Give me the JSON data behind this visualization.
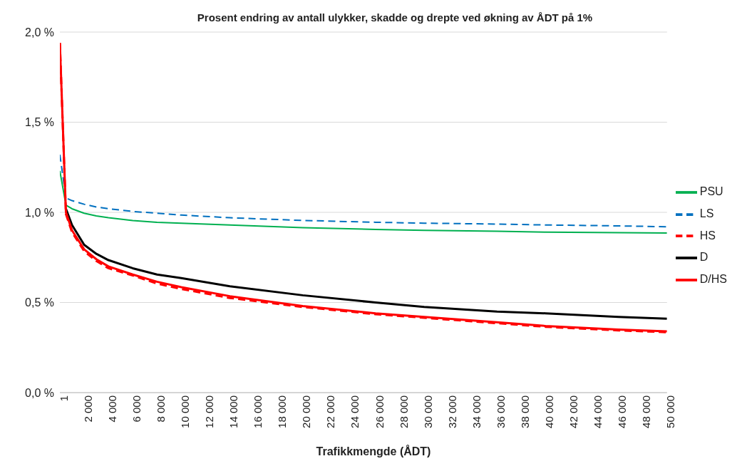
{
  "chart_data": {
    "type": "line",
    "title": "Prosent endring av antall ulykker, skadde og drepte ved økning av ÅDT på 1%",
    "xlabel": "Trafikkmengde (ÅDT)",
    "x": [
      1,
      500,
      1000,
      2000,
      3000,
      4000,
      6000,
      8000,
      10000,
      14000,
      20000,
      26000,
      30000,
      36000,
      40000,
      46000,
      50000
    ],
    "series": [
      {
        "name": "PSU",
        "color": "#00b050",
        "line_style": "solid",
        "values": [
          1.23,
          1.04,
          1.02,
          0.995,
          0.98,
          0.97,
          0.955,
          0.945,
          0.94,
          0.93,
          0.915,
          0.905,
          0.9,
          0.895,
          0.89,
          0.887,
          0.885
        ]
      },
      {
        "name": "LS",
        "color": "#0070c0",
        "line_style": "dashed",
        "values": [
          1.32,
          1.08,
          1.065,
          1.045,
          1.03,
          1.02,
          1.005,
          0.995,
          0.985,
          0.97,
          0.955,
          0.945,
          0.94,
          0.935,
          0.93,
          0.925,
          0.92
        ]
      },
      {
        "name": "HS",
        "color": "#ff0000",
        "line_style": "dashed",
        "values": [
          1.94,
          0.99,
          0.89,
          0.785,
          0.73,
          0.69,
          0.65,
          0.605,
          0.575,
          0.525,
          0.475,
          0.435,
          0.415,
          0.385,
          0.365,
          0.345,
          0.335
        ]
      },
      {
        "name": "D",
        "color": "#000000",
        "line_style": "solid",
        "values": [
          null,
          1.02,
          0.93,
          0.82,
          0.77,
          0.735,
          0.69,
          0.655,
          0.635,
          0.59,
          0.54,
          0.5,
          0.475,
          0.45,
          0.44,
          0.42,
          0.41
        ]
      },
      {
        "name": "D/HS",
        "color": "#ff0000",
        "line_style": "solid",
        "values": [
          1.94,
          1.0,
          0.9,
          0.795,
          0.74,
          0.7,
          0.655,
          0.615,
          0.585,
          0.535,
          0.48,
          0.44,
          0.42,
          0.39,
          0.37,
          0.35,
          0.34
        ]
      }
    ],
    "xlim": [
      1,
      50000
    ],
    "xticks": [
      {
        "value": 1,
        "label": "1"
      },
      {
        "value": 2000,
        "label": "2 000"
      },
      {
        "value": 4000,
        "label": "4 000"
      },
      {
        "value": 6000,
        "label": "6 000"
      },
      {
        "value": 8000,
        "label": "8 000"
      },
      {
        "value": 10000,
        "label": "10 000"
      },
      {
        "value": 12000,
        "label": "12 000"
      },
      {
        "value": 14000,
        "label": "14 000"
      },
      {
        "value": 16000,
        "label": "16 000"
      },
      {
        "value": 18000,
        "label": "18 000"
      },
      {
        "value": 20000,
        "label": "20 000"
      },
      {
        "value": 22000,
        "label": "22 000"
      },
      {
        "value": 24000,
        "label": "24 000"
      },
      {
        "value": 26000,
        "label": "26 000"
      },
      {
        "value": 28000,
        "label": "28 000"
      },
      {
        "value": 30000,
        "label": "30 000"
      },
      {
        "value": 32000,
        "label": "32 000"
      },
      {
        "value": 34000,
        "label": "34 000"
      },
      {
        "value": 36000,
        "label": "36 000"
      },
      {
        "value": 38000,
        "label": "38 000"
      },
      {
        "value": 40000,
        "label": "40 000"
      },
      {
        "value": 42000,
        "label": "42 000"
      },
      {
        "value": 44000,
        "label": "44 000"
      },
      {
        "value": 46000,
        "label": "46 000"
      },
      {
        "value": 48000,
        "label": "48 000"
      },
      {
        "value": 50000,
        "label": "50 000"
      }
    ],
    "ylim": [
      0,
      2
    ],
    "yticks": [
      {
        "value": 0,
        "label": "0,0 %"
      },
      {
        "value": 0.5,
        "label": "0,5 %"
      },
      {
        "value": 1,
        "label": "1,0 %"
      },
      {
        "value": 1.5,
        "label": "1,5 %"
      },
      {
        "value": 2,
        "label": "2,0 %"
      }
    ],
    "grid": "y",
    "legend": "right",
    "marker": "none"
  }
}
